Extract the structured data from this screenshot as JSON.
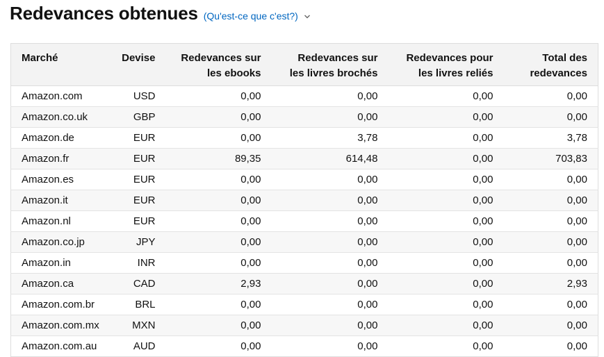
{
  "header": {
    "title": "Redevances obtenues",
    "help_link": "(Qu'est-ce que c'est?)"
  },
  "table": {
    "columns": [
      "Marché",
      "Devise",
      "Redevances sur les ebooks",
      "Redevances sur les livres brochés",
      "Redevances pour les livres reliés",
      "Total des redevances"
    ],
    "rows": [
      [
        "Amazon.com",
        "USD",
        "0,00",
        "0,00",
        "0,00",
        "0,00"
      ],
      [
        "Amazon.co.uk",
        "GBP",
        "0,00",
        "0,00",
        "0,00",
        "0,00"
      ],
      [
        "Amazon.de",
        "EUR",
        "0,00",
        "3,78",
        "0,00",
        "3,78"
      ],
      [
        "Amazon.fr",
        "EUR",
        "89,35",
        "614,48",
        "0,00",
        "703,83"
      ],
      [
        "Amazon.es",
        "EUR",
        "0,00",
        "0,00",
        "0,00",
        "0,00"
      ],
      [
        "Amazon.it",
        "EUR",
        "0,00",
        "0,00",
        "0,00",
        "0,00"
      ],
      [
        "Amazon.nl",
        "EUR",
        "0,00",
        "0,00",
        "0,00",
        "0,00"
      ],
      [
        "Amazon.co.jp",
        "JPY",
        "0,00",
        "0,00",
        "0,00",
        "0,00"
      ],
      [
        "Amazon.in",
        "INR",
        "0,00",
        "0,00",
        "0,00",
        "0,00"
      ],
      [
        "Amazon.ca",
        "CAD",
        "2,93",
        "0,00",
        "0,00",
        "2,93"
      ],
      [
        "Amazon.com.br",
        "BRL",
        "0,00",
        "0,00",
        "0,00",
        "0,00"
      ],
      [
        "Amazon.com.mx",
        "MXN",
        "0,00",
        "0,00",
        "0,00",
        "0,00"
      ],
      [
        "Amazon.com.au",
        "AUD",
        "0,00",
        "0,00",
        "0,00",
        "0,00"
      ]
    ]
  }
}
